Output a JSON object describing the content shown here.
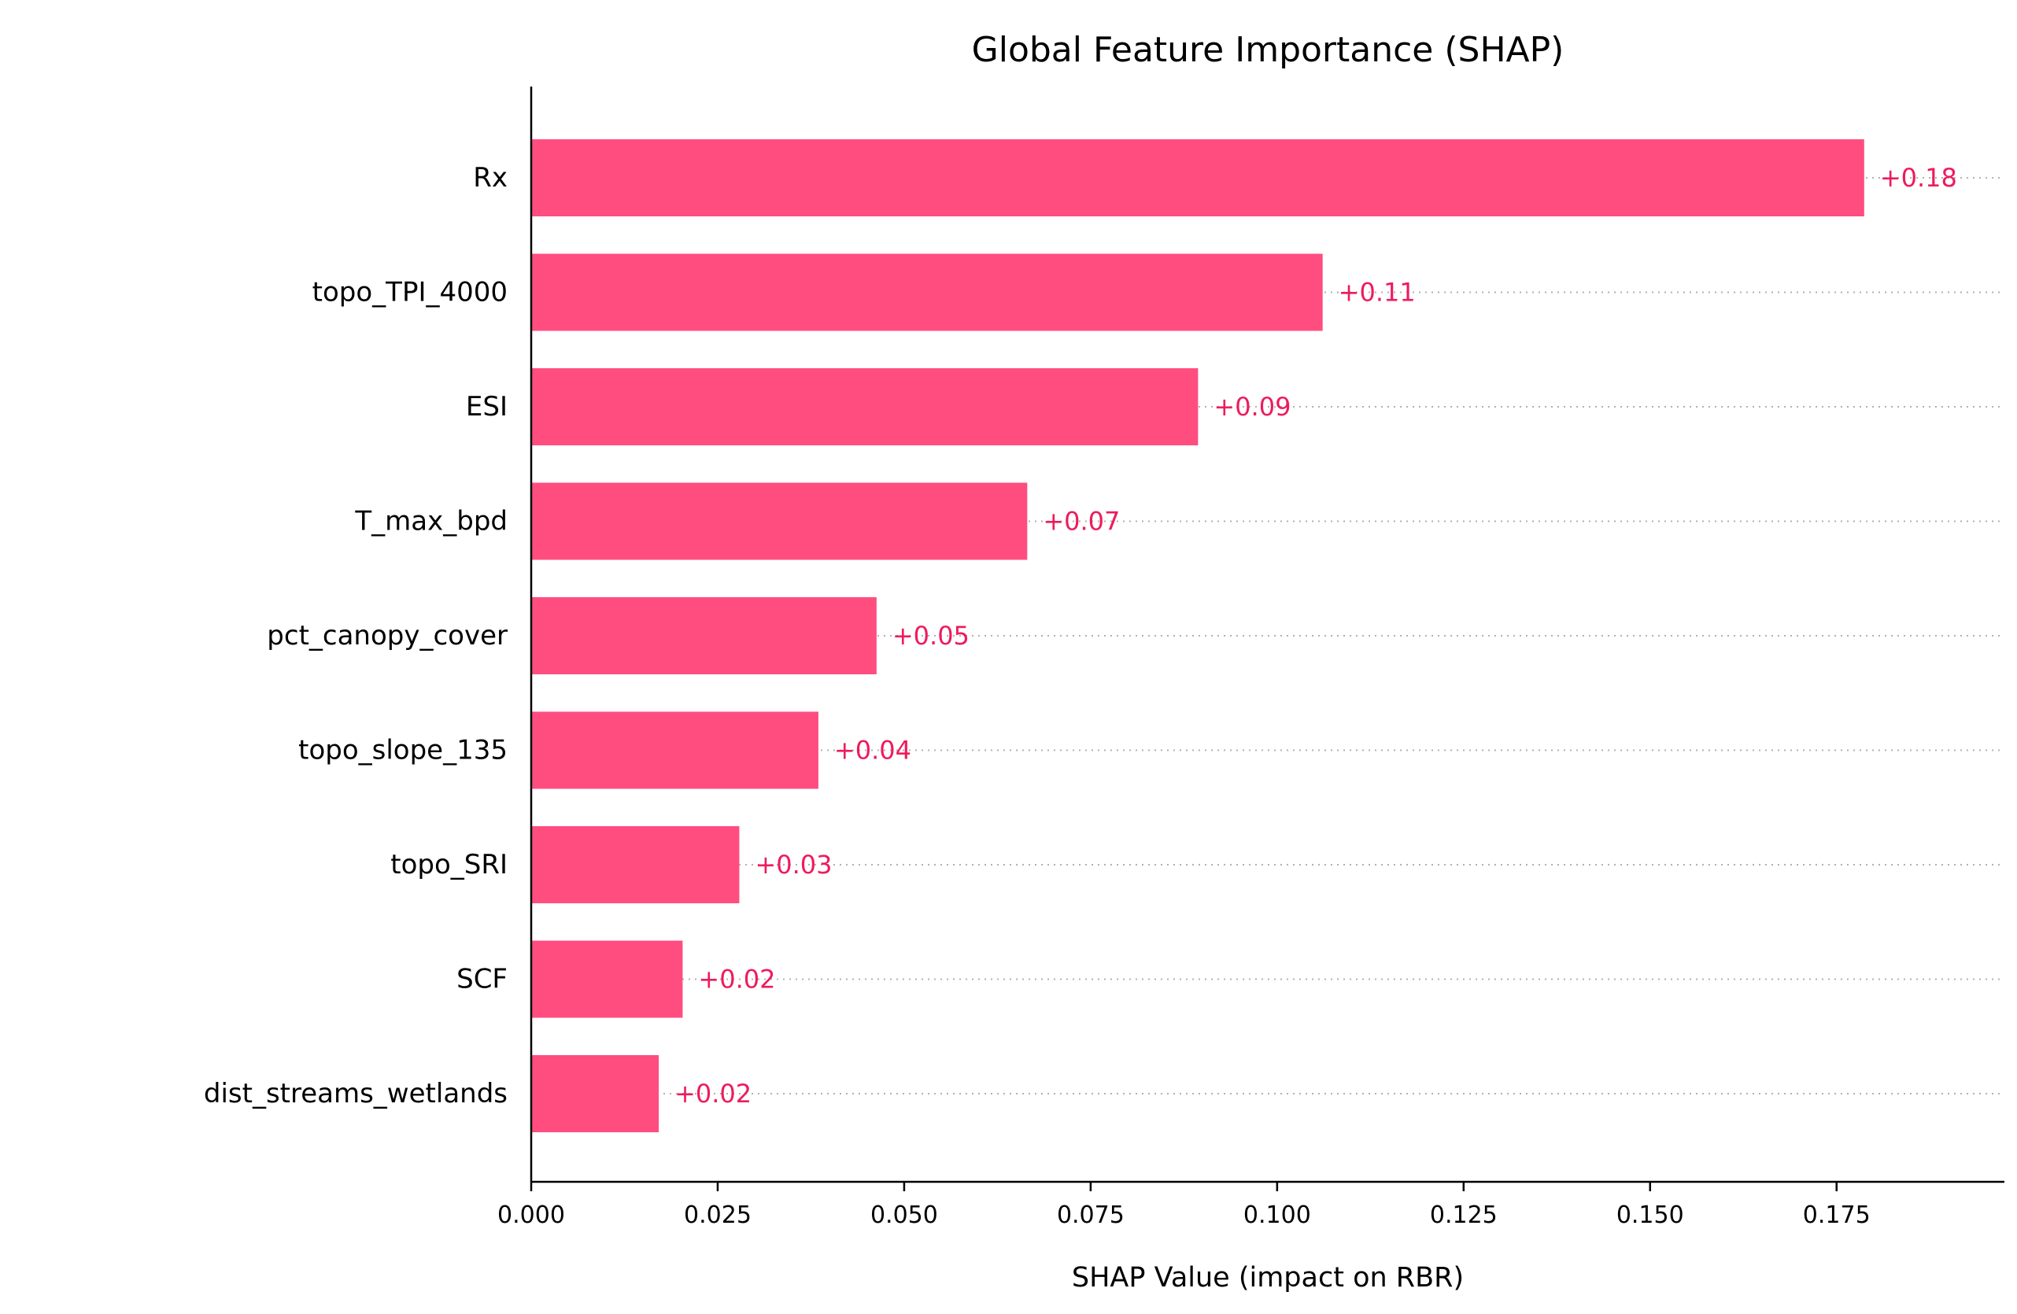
{
  "chart_data": {
    "type": "bar",
    "orientation": "horizontal",
    "title": "Global Feature Importance (SHAP)",
    "xlabel": "SHAP Value (impact on RBR)",
    "ylabel": "",
    "xlim": [
      0,
      0.1975
    ],
    "xticks": [
      0.0,
      0.025,
      0.05,
      0.075,
      0.1,
      0.125,
      0.15,
      0.175
    ],
    "xtick_labels": [
      "0.000",
      "0.025",
      "0.050",
      "0.075",
      "0.100",
      "0.125",
      "0.150",
      "0.175"
    ],
    "categories": [
      "Rx",
      "topo_TPI_4000",
      "ESI",
      "T_max_bpd",
      "pct_canopy_cover",
      "topo_slope_135",
      "topo_SRI",
      "SCF",
      "dist_streams_wetlands"
    ],
    "values": [
      0.1787,
      0.1061,
      0.0894,
      0.0665,
      0.0463,
      0.0385,
      0.0279,
      0.0203,
      0.0171
    ],
    "data_labels": [
      "+0.18",
      "+0.11",
      "+0.09",
      "+0.07",
      "+0.05",
      "+0.04",
      "+0.03",
      "+0.02",
      "+0.02"
    ],
    "grid": "dotted lines per category",
    "colors": {
      "bar": "#ff4d80",
      "label": "#ee1b5d",
      "grid": "#b0b0b0",
      "axis": "#000000"
    }
  }
}
